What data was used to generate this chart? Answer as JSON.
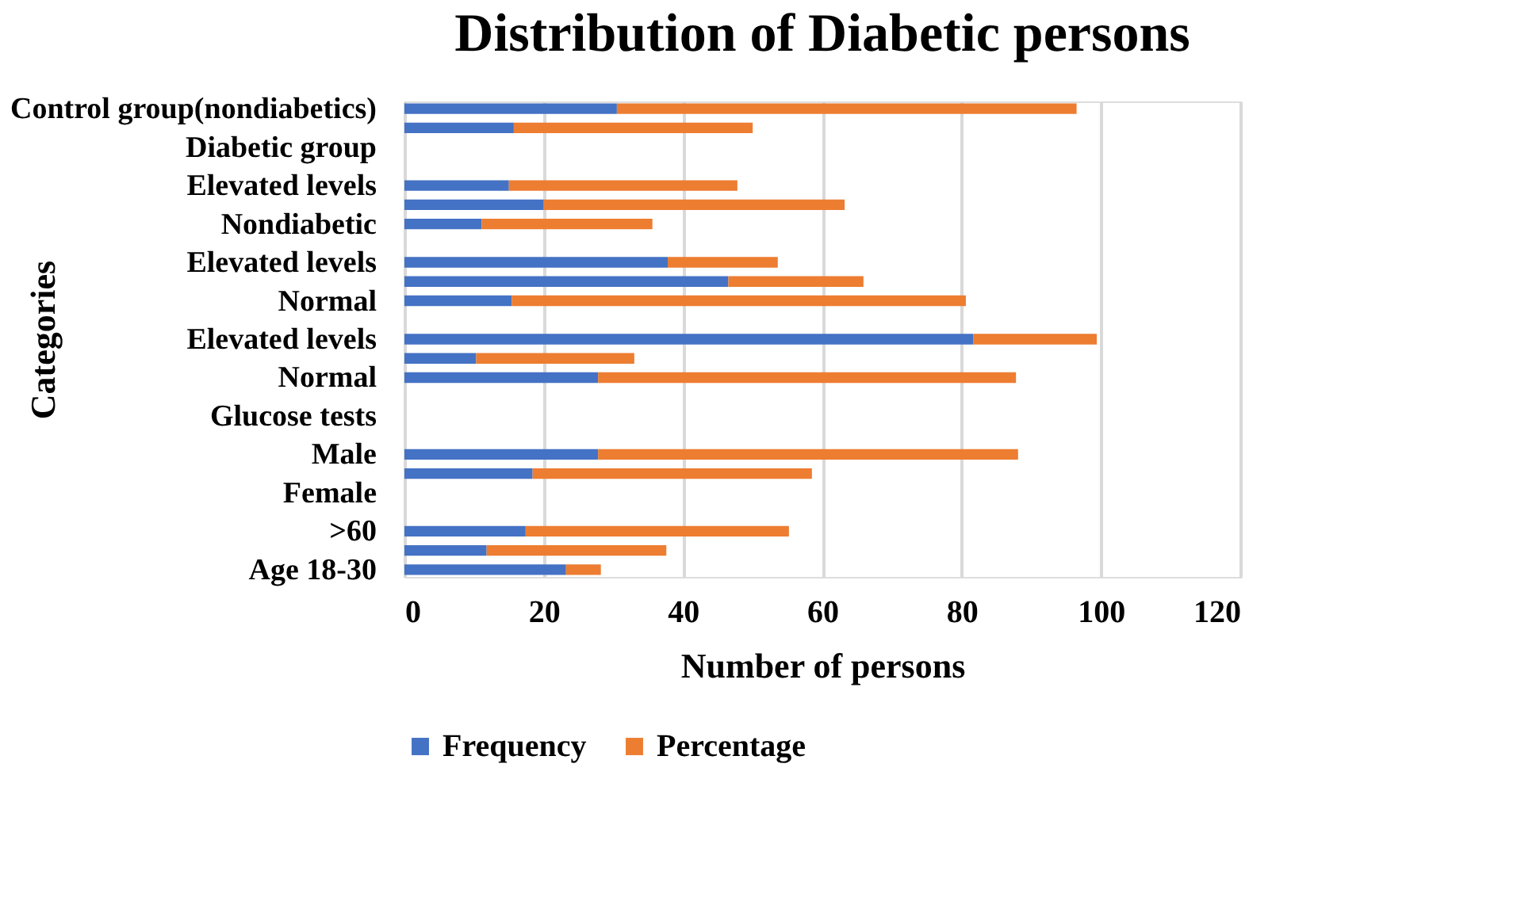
{
  "chart_data": {
    "type": "bar",
    "orientation": "horizontal",
    "stacked": true,
    "title": "Distribution of Diabetic persons",
    "xlabel": "Number of persons",
    "ylabel": "Categories",
    "categories": [
      "Control group(nondiabetics)",
      null,
      "Diabetic group",
      null,
      "Elevated levels",
      null,
      "Nondiabetic",
      null,
      "Elevated levels",
      null,
      "Normal",
      null,
      "Elevated levels",
      null,
      "Normal",
      null,
      "Glucose tests",
      null,
      "Male",
      null,
      "Female",
      null,
      ">60",
      null,
      "Age 18-30"
    ],
    "series": [
      {
        "name": "Frequency",
        "color": "#4472c4",
        "values": [
          30.5,
          15.7,
          null,
          null,
          15.0,
          20.0,
          11.1,
          null,
          37.8,
          46.5,
          15.4,
          null,
          81.7,
          10.3,
          27.8,
          null,
          null,
          null,
          27.8,
          18.4,
          null,
          null,
          17.4,
          11.8,
          23.2
        ]
      },
      {
        "name": "Percentage",
        "color": "#ed7d31",
        "values": [
          66.0,
          34.3,
          null,
          null,
          32.8,
          43.2,
          24.5,
          null,
          15.8,
          19.4,
          65.2,
          null,
          17.7,
          22.7,
          60.0,
          null,
          null,
          null,
          60.3,
          40.1,
          null,
          null,
          37.8,
          25.8,
          5.0
        ]
      }
    ],
    "xlim": [
      0,
      120
    ],
    "xticks": [
      0,
      20,
      40,
      60,
      80,
      100,
      120
    ],
    "grid": "x",
    "legend": "bottom"
  }
}
